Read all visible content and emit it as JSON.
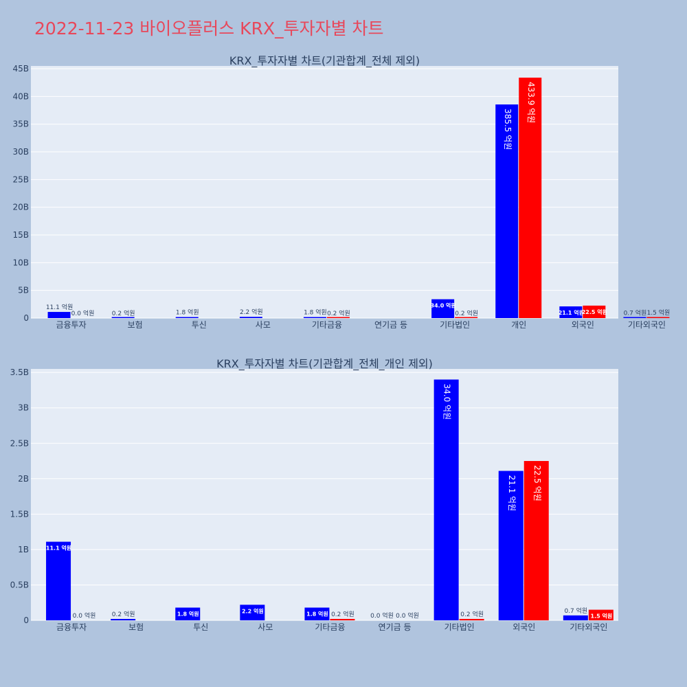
{
  "page": {
    "title": "2022-11-23 바이오플러스 KRX_투자자별 차트"
  },
  "colors": {
    "plot_bg": "#e5ecf6",
    "grid": "#ffffff",
    "buy": "#0000ff",
    "sell": "#ff0000",
    "title": "#e8475a",
    "text": "#2a3f5f"
  },
  "chart_data": [
    {
      "type": "bar",
      "title": "KRX_투자자별 차트(기관합계_전체 제외)",
      "categories": [
        "금융투자",
        "보험",
        "투신",
        "사모",
        "기타금융",
        "연기금 등",
        "기타법인",
        "개인",
        "외국인",
        "기타외국인"
      ],
      "ylim": [
        0,
        45500000000
      ],
      "yticks": [
        0,
        5000000000,
        10000000000,
        15000000000,
        20000000000,
        25000000000,
        30000000000,
        35000000000,
        40000000000,
        45000000000
      ],
      "ytick_labels": [
        "0",
        "5B",
        "10B",
        "15B",
        "20B",
        "25B",
        "30B",
        "35B",
        "40B",
        "45B"
      ],
      "series": [
        {
          "color": "#0000ff",
          "values": [
            1110000000,
            20000000,
            180000000,
            220000000,
            180000000,
            null,
            3400000000,
            38550000000,
            2110000000,
            70000000
          ],
          "labels": [
            "11.1 억원",
            "0.2 억원",
            "1.8 억원",
            "2.2 억원",
            "1.8 억원",
            "",
            "34.0 억원",
            "385.5 억원",
            "21.1 억원",
            "0.7 억원"
          ]
        },
        {
          "color": "#ff0000",
          "values": [
            0,
            null,
            null,
            null,
            20000000,
            null,
            20000000,
            43390000000,
            2250000000,
            150000000
          ],
          "labels": [
            "0.0 억원",
            "",
            "",
            "",
            "0.2 억원",
            "",
            "0.2 억원",
            "433.9 억원",
            "22.5 억원",
            "1.5 억원"
          ]
        }
      ],
      "legend": false,
      "grid": true
    },
    {
      "type": "bar",
      "title": "KRX_투자자별 차트(기관합계_전체_개인 제외)",
      "categories": [
        "금융투자",
        "보험",
        "투신",
        "사모",
        "기타금융",
        "연기금 등",
        "기타법인",
        "외국인",
        "기타외국인"
      ],
      "ylim": [
        0,
        3550000000
      ],
      "yticks": [
        0,
        500000000,
        1000000000,
        1500000000,
        2000000000,
        2500000000,
        3000000000,
        3500000000
      ],
      "ytick_labels": [
        "0",
        "0.5B",
        "1B",
        "1.5B",
        "2B",
        "2.5B",
        "3B",
        "3.5B"
      ],
      "series": [
        {
          "color": "#0000ff",
          "values": [
            1110000000,
            20000000,
            180000000,
            220000000,
            180000000,
            0,
            3400000000,
            2110000000,
            70000000
          ],
          "labels": [
            "11.1 억원",
            "0.2 억원",
            "1.8 억원",
            "2.2 억원",
            "1.8 억원",
            "0.0 억원",
            "34.0 억원",
            "21.1 억원",
            "0.7 억원"
          ]
        },
        {
          "color": "#ff0000",
          "values": [
            0,
            null,
            null,
            null,
            20000000,
            0,
            20000000,
            2250000000,
            150000000
          ],
          "labels": [
            "0.0 억원",
            "",
            "",
            "",
            "0.2 억원",
            "0.0 억원",
            "0.2 억원",
            "22.5 억원",
            "1.5 억원"
          ]
        }
      ],
      "legend": false,
      "grid": true
    }
  ]
}
